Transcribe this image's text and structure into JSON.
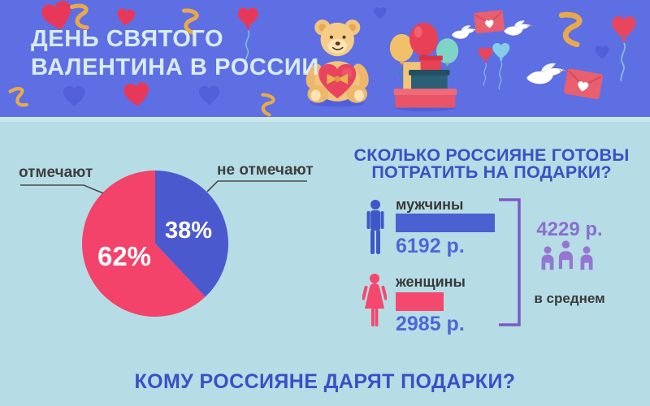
{
  "banner": {
    "title_line1": "ДЕНЬ СВЯТОГО",
    "title_line2": "ВАЛЕНТИНА В РОССИИ"
  },
  "pie_section": {
    "label_celebrate": "отмечают",
    "label_not_celebrate": "не отмечают",
    "pct_celebrate": "62%",
    "pct_not_celebrate": "38%"
  },
  "spend_section": {
    "title_line1": "СКОЛЬКО РОССИЯНЕ ГОТОВЫ",
    "title_line2": "ПОТРАТИТЬ НА ПОДАРКИ?",
    "men_label": "мужчины",
    "men_value": "6192 р.",
    "women_label": "женщины",
    "women_value": "2985 р.",
    "avg_value": "4229 р.",
    "avg_label": "в среднем"
  },
  "bottom_title": "КОМУ РОССИЯНЕ ДАРЯТ ПОДАРКИ?",
  "colors": {
    "banner_bg": "#5e6fe4",
    "banner_title": "#d9ecf6",
    "body_bg": "#b6dde5",
    "pie_pink": "#f4436b",
    "pie_blue": "#4a5ace",
    "bar_blue": "#4a61d2",
    "bar_pink": "#f4486e",
    "value_blue": "#4f66d8",
    "avg_purple": "#8a6ed2",
    "bracket_purple": "#7b5bc7",
    "heading_blue": "#3a50c4"
  },
  "icons": [
    "heart-icon",
    "streamer-icon",
    "heart-balloon-icon",
    "dove-icon",
    "envelope-icon",
    "teddy-bear-icon",
    "gifts-balloons-icon",
    "man-icon",
    "woman-icon",
    "people-group-icon"
  ],
  "chart_data": [
    {
      "type": "pie",
      "labels": [
        "не отмечают",
        "отмечают"
      ],
      "values": [
        38,
        62
      ],
      "colors": [
        "#4a5ace",
        "#f4436b"
      ],
      "unit": "%",
      "start_angle_deg": 0,
      "direction": "clockwise",
      "annotations": [
        "62%",
        "38%"
      ]
    },
    {
      "type": "bar",
      "title": "СКОЛЬКО РОССИЯНЕ ГОТОВЫ ПОТРАТИТЬ НА ПОДАРКИ?",
      "categories": [
        "мужчины",
        "женщины"
      ],
      "values": [
        6192,
        2985
      ],
      "unit": "р.",
      "colors": [
        "#4a61d2",
        "#f4486e"
      ],
      "average": {
        "value": 4229,
        "label": "в среднем",
        "display": "4229 р."
      },
      "orientation": "horizontal"
    }
  ]
}
